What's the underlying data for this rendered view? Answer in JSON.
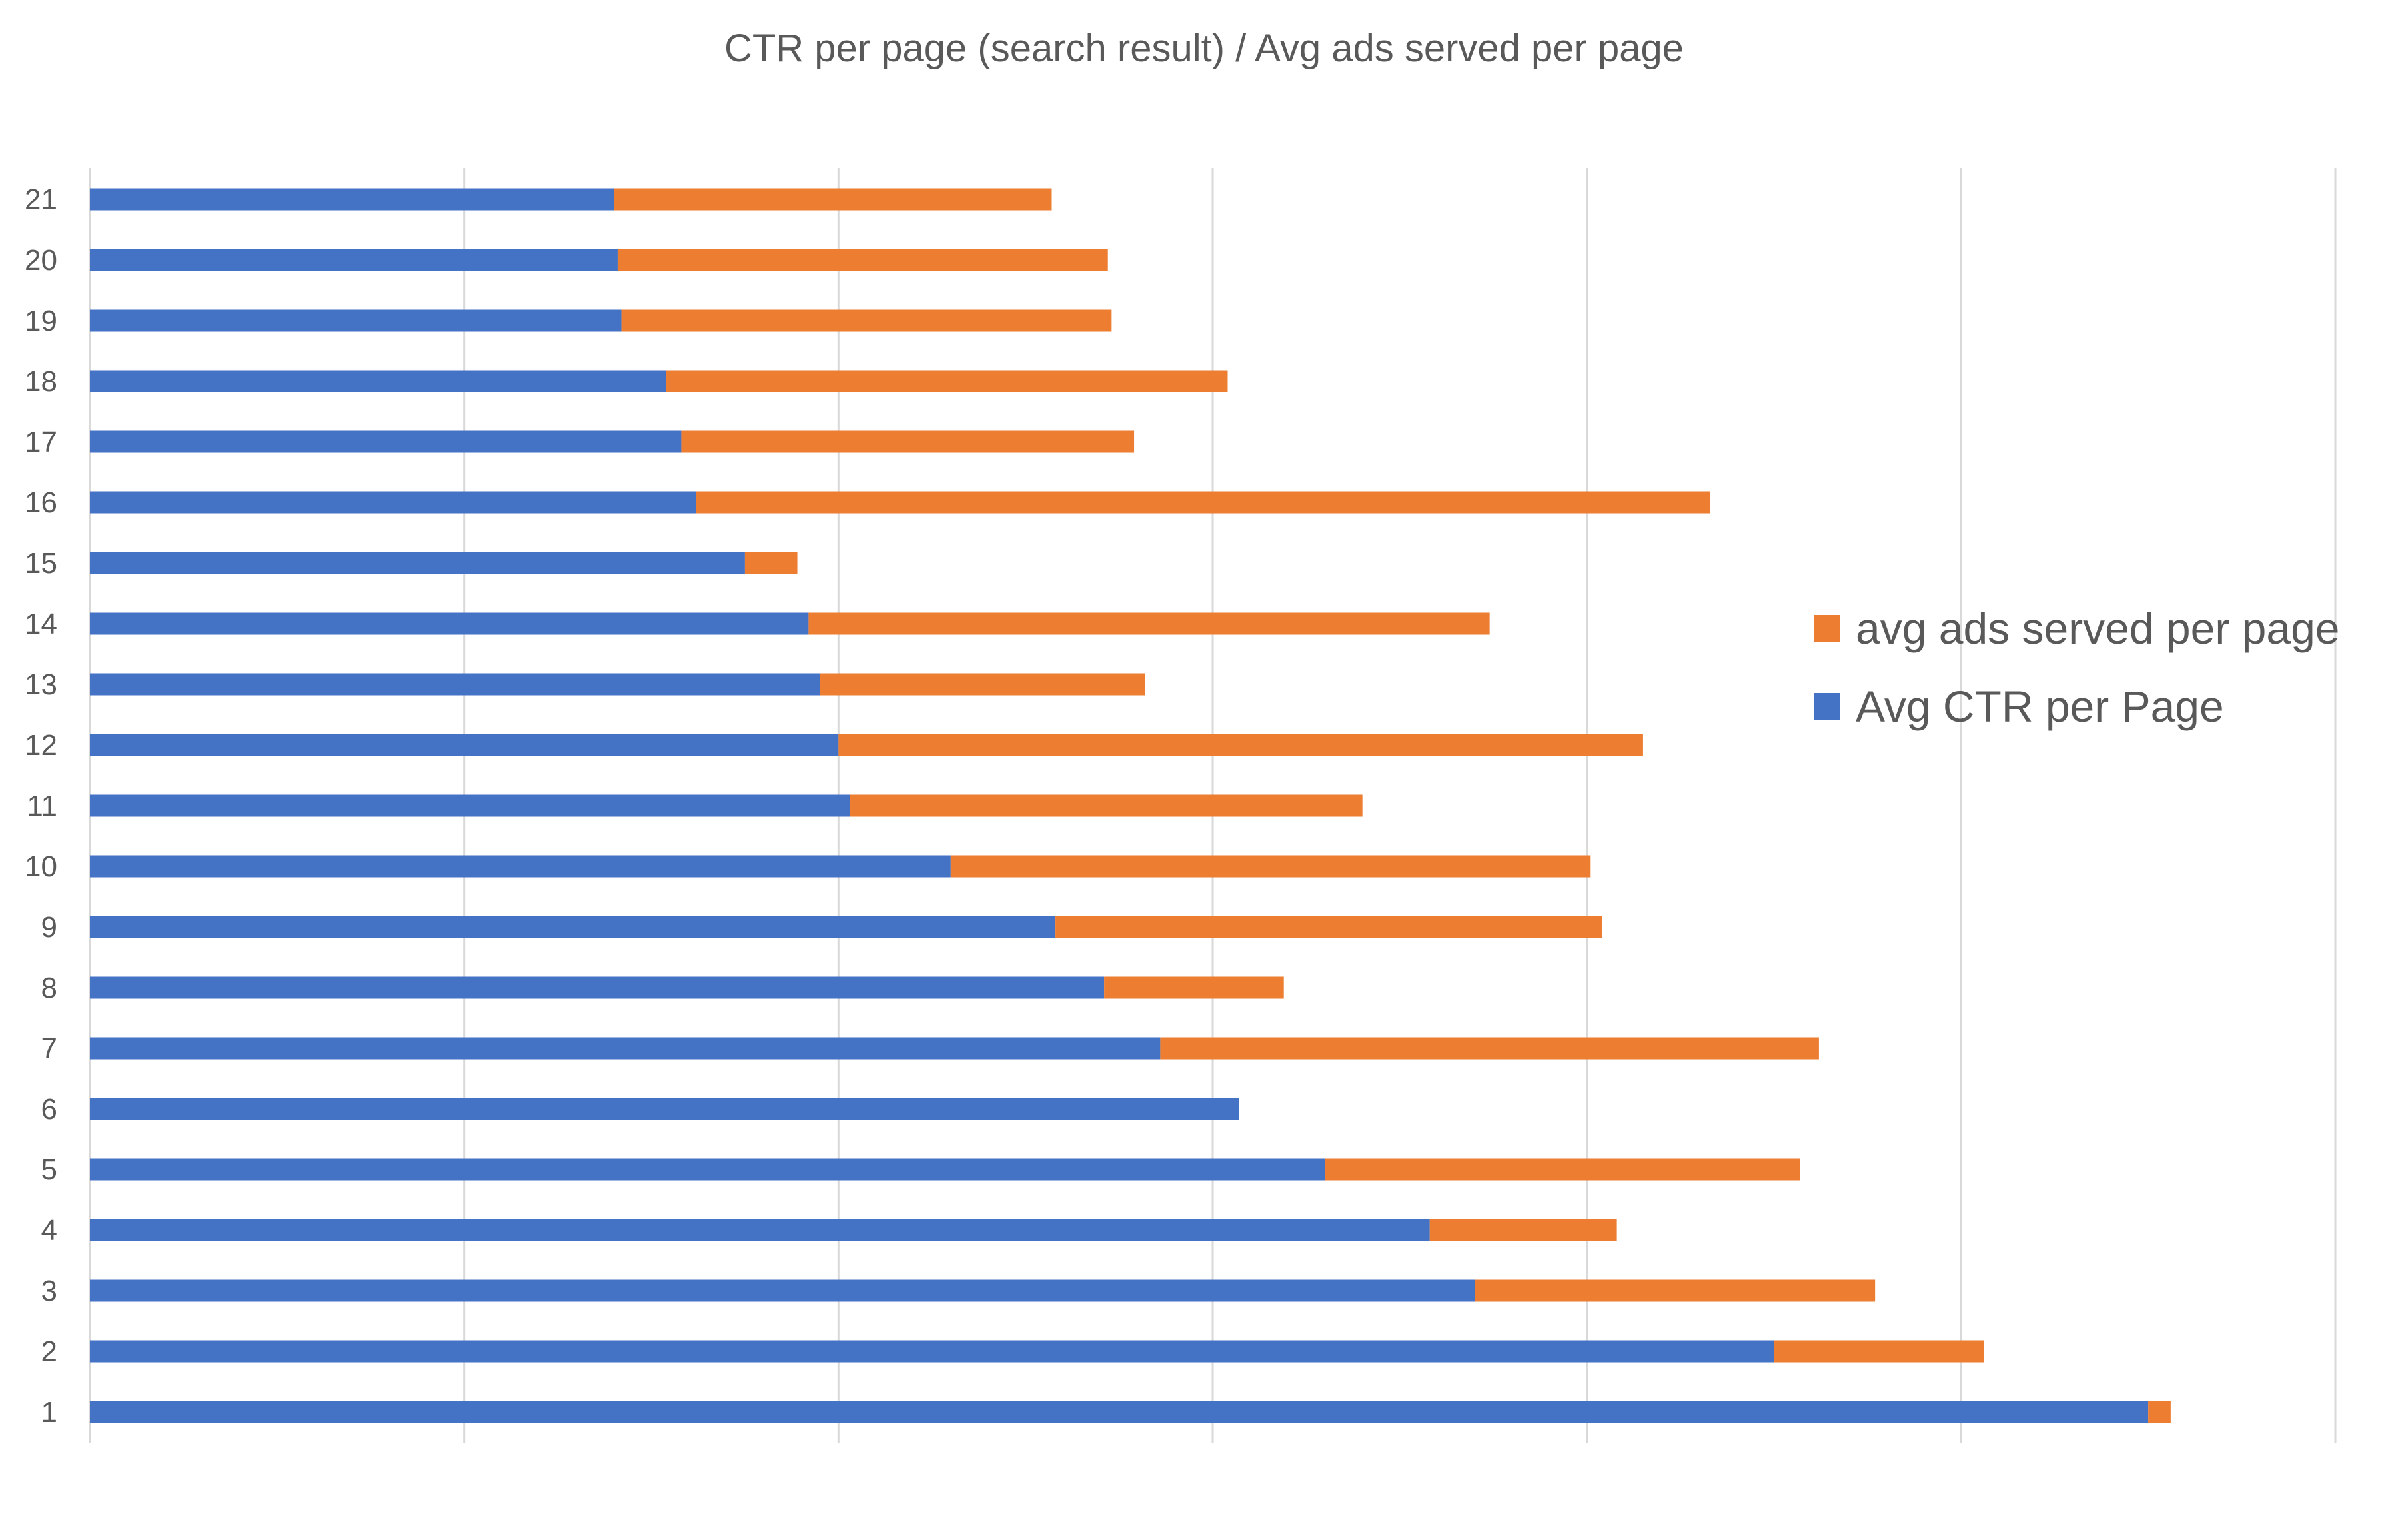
{
  "chart_data": {
    "type": "bar",
    "orientation": "horizontal",
    "stacked": true,
    "title": "CTR per page (search result) / Avg ads served per page",
    "xlabel": "",
    "ylabel": "",
    "categories": [
      "1",
      "2",
      "3",
      "4",
      "5",
      "6",
      "7",
      "8",
      "9",
      "10",
      "11",
      "12",
      "13",
      "14",
      "15",
      "16",
      "17",
      "18",
      "19",
      "20",
      "21"
    ],
    "series": [
      {
        "name": "Avg CTR per Page",
        "color": "#4472C4",
        "values": [
          5.5,
          4.5,
          3.7,
          3.58,
          3.3,
          3.07,
          2.86,
          2.71,
          2.58,
          2.3,
          2.03,
          2.0,
          1.95,
          1.92,
          1.75,
          1.62,
          1.58,
          1.54,
          1.42,
          1.41,
          1.4
        ]
      },
      {
        "name": "avg ads served per page",
        "color": "#ED7D31",
        "values": [
          0.06,
          0.56,
          1.07,
          0.5,
          1.27,
          0.0,
          1.76,
          0.48,
          1.46,
          1.71,
          1.37,
          2.15,
          0.87,
          1.82,
          0.14,
          2.71,
          1.21,
          1.5,
          1.31,
          1.31,
          1.17
        ]
      }
    ],
    "xlim": [
      0,
      6
    ],
    "x_ticks": [
      0,
      1,
      2,
      3,
      4,
      5,
      6
    ],
    "x_tick_labels_visible": false,
    "gridlines": "vertical",
    "legend": {
      "position": "right",
      "order": [
        "avg ads served per page",
        "Avg CTR per Page"
      ]
    }
  }
}
